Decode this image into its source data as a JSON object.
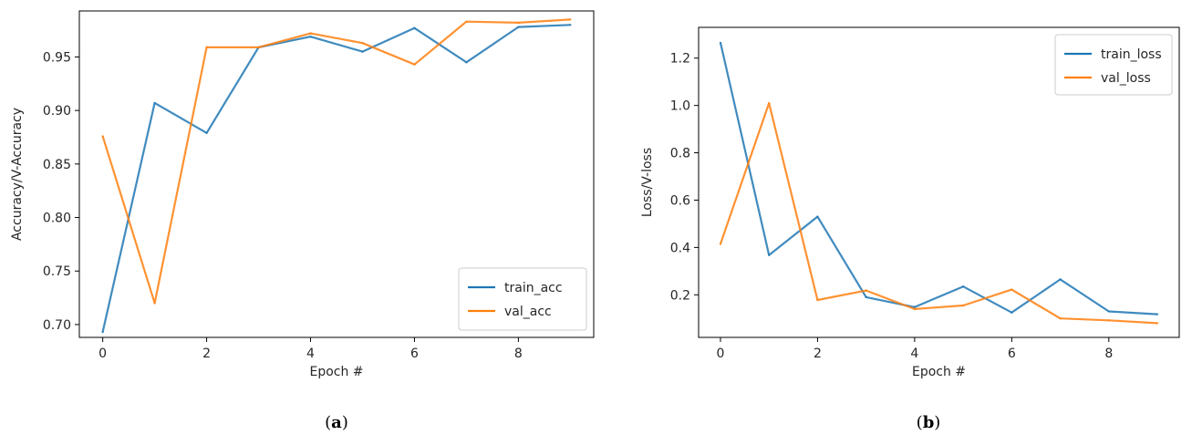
{
  "colors": {
    "train": "#1f77b4",
    "val": "#ff7f0e"
  },
  "chart_data": [
    {
      "type": "line",
      "panel_label": {
        "open": "(",
        "letter": "a",
        "close": ")"
      },
      "xlabel": "Epoch #",
      "ylabel": "Accuracy/V-Accuracy",
      "xlim": [
        -0.45,
        9.45
      ],
      "ylim": [
        0.688,
        0.993
      ],
      "xticks": [
        0,
        2,
        4,
        6,
        8
      ],
      "yticks": [
        0.7,
        0.75,
        0.8,
        0.85,
        0.9,
        0.95
      ],
      "ytick_labels": [
        "0.70",
        "0.75",
        "0.80",
        "0.85",
        "0.90",
        "0.95"
      ],
      "grid": false,
      "legend_position": "lower-right",
      "x": [
        0,
        1,
        2,
        3,
        4,
        5,
        6,
        7,
        8,
        9
      ],
      "series": [
        {
          "name": "train_acc",
          "color": "#1f77b4",
          "values": [
            0.693,
            0.907,
            0.879,
            0.959,
            0.969,
            0.955,
            0.977,
            0.945,
            0.978,
            0.98
          ]
        },
        {
          "name": "val_acc",
          "color": "#ff7f0e",
          "values": [
            0.876,
            0.72,
            0.959,
            0.959,
            0.972,
            0.963,
            0.943,
            0.983,
            0.982,
            0.985
          ]
        }
      ]
    },
    {
      "type": "line",
      "panel_label": {
        "open": "(",
        "letter": "b",
        "close": ")"
      },
      "xlabel": "Epoch #",
      "ylabel": "Loss/V-loss",
      "xlim": [
        -0.45,
        9.45
      ],
      "ylim": [
        0.02,
        1.33
      ],
      "xticks": [
        0,
        2,
        4,
        6,
        8
      ],
      "yticks": [
        0.2,
        0.4,
        0.6,
        0.8,
        1.0,
        1.2
      ],
      "ytick_labels": [
        "0.2",
        "0.4",
        "0.6",
        "0.8",
        "1.0",
        "1.2"
      ],
      "grid": false,
      "legend_position": "upper-right",
      "x": [
        0,
        1,
        2,
        3,
        4,
        5,
        6,
        7,
        8,
        9
      ],
      "series": [
        {
          "name": "train_loss",
          "color": "#1f77b4",
          "values": [
            1.265,
            0.368,
            0.53,
            0.19,
            0.148,
            0.235,
            0.125,
            0.265,
            0.13,
            0.118
          ]
        },
        {
          "name": "val_loss",
          "color": "#ff7f0e",
          "values": [
            0.415,
            1.01,
            0.178,
            0.218,
            0.14,
            0.155,
            0.222,
            0.1,
            0.092,
            0.08
          ]
        }
      ]
    }
  ]
}
